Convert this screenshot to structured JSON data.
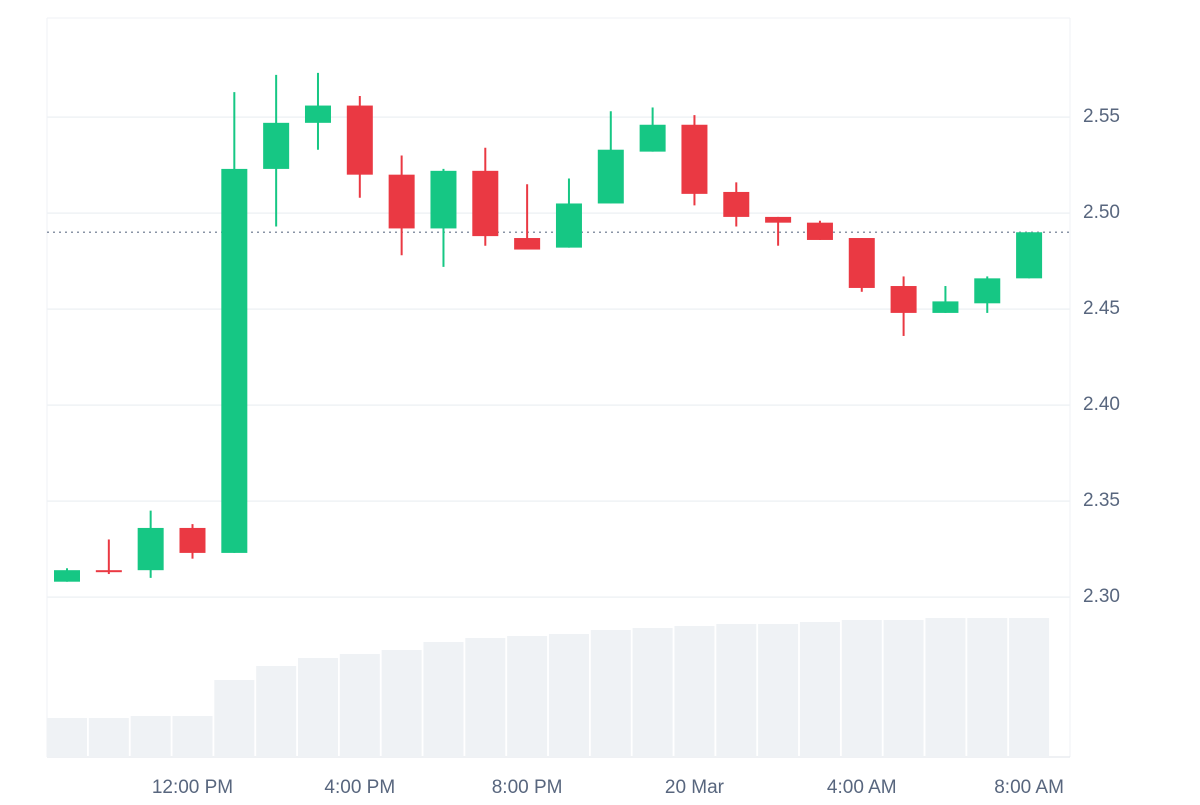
{
  "chart_data": {
    "type": "candlestick",
    "categories": [
      null,
      null,
      null,
      "12:00 PM",
      null,
      null,
      null,
      "4:00 PM",
      null,
      null,
      null,
      "8:00 PM",
      null,
      null,
      null,
      "20 Mar",
      null,
      null,
      null,
      "4:00 AM",
      null,
      null,
      null,
      "8:00 AM"
    ],
    "open": [
      2.308,
      2.314,
      2.314,
      2.336,
      2.323,
      2.523,
      2.547,
      2.556,
      2.52,
      2.492,
      2.522,
      2.487,
      2.482,
      2.505,
      2.532,
      2.546,
      2.511,
      2.498,
      2.495,
      2.487,
      2.462,
      2.448,
      2.453,
      2.466
    ],
    "high": [
      2.315,
      2.33,
      2.345,
      2.338,
      2.563,
      2.572,
      2.573,
      2.561,
      2.53,
      2.523,
      2.534,
      2.515,
      2.518,
      2.553,
      2.555,
      2.551,
      2.516,
      2.498,
      2.496,
      2.487,
      2.467,
      2.462,
      2.467,
      2.49
    ],
    "low": [
      2.308,
      2.312,
      2.31,
      2.32,
      2.323,
      2.493,
      2.533,
      2.508,
      2.478,
      2.472,
      2.483,
      2.481,
      2.482,
      2.505,
      2.532,
      2.504,
      2.493,
      2.483,
      2.486,
      2.459,
      2.436,
      2.448,
      2.448,
      2.466
    ],
    "close": [
      2.314,
      2.313,
      2.336,
      2.323,
      2.523,
      2.547,
      2.556,
      2.52,
      2.492,
      2.522,
      2.488,
      2.481,
      2.505,
      2.533,
      2.546,
      2.51,
      2.498,
      2.495,
      2.486,
      2.461,
      2.448,
      2.454,
      2.466,
      2.49
    ],
    "volume": [
      39,
      39,
      41,
      41,
      77,
      91,
      99,
      103,
      107,
      115,
      119,
      121,
      123,
      127,
      129,
      131,
      133,
      133,
      135,
      137,
      137,
      139,
      139,
      139
    ],
    "volume_lim": [
      0,
      140
    ],
    "up_color": "#16c784",
    "down_color": "#ea3943",
    "volume_color": "#eff2f5",
    "last_price": 2.49,
    "ylim": [
      2.2167,
      2.6016
    ],
    "yticks": [
      {
        "value": 2.3,
        "label": "2.30"
      },
      2.35,
      {
        "value": 2.4,
        "label": "2.40"
      },
      2.45,
      {
        "value": 2.5,
        "label": "2.50"
      },
      2.55
    ],
    "grid": true
  }
}
